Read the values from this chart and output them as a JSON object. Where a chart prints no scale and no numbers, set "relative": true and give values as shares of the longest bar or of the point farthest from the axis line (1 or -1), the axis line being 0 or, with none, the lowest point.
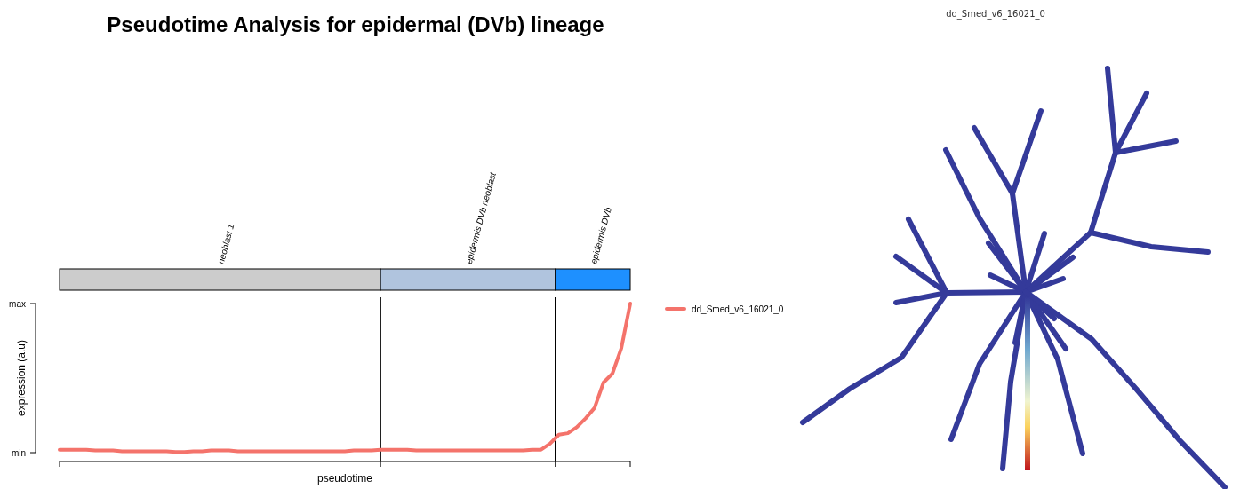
{
  "chart_data": [
    {
      "type": "line",
      "title": "Pseudotime Analysis for epidermal (DVb) lineage",
      "xlabel": "pseudotime",
      "ylabel": "expression (a.u)",
      "categories": [
        null,
        null,
        null,
        null,
        null,
        null,
        null,
        null,
        null,
        null,
        null,
        null,
        null,
        null,
        null,
        null,
        null,
        null,
        null,
        null,
        null,
        null,
        null,
        null,
        null,
        null,
        null,
        null,
        null,
        null,
        null,
        null,
        null,
        null,
        null,
        null,
        null,
        null,
        null,
        null,
        null,
        null,
        null,
        null,
        null,
        null,
        null,
        null,
        null,
        null,
        null,
        null,
        null,
        null,
        null,
        null,
        null,
        null,
        null,
        null,
        null,
        null,
        null,
        null,
        null
      ],
      "series": [
        {
          "name": "dd_Smed_v6_16021_0",
          "color": "#f4736b",
          "values": [
            0.075,
            0.075,
            0.075,
            0.075,
            0.07,
            0.07,
            0.07,
            0.065,
            0.065,
            0.065,
            0.065,
            0.065,
            0.065,
            0.061,
            0.061,
            0.065,
            0.065,
            0.07,
            0.07,
            0.07,
            0.065,
            0.065,
            0.065,
            0.065,
            0.065,
            0.065,
            0.065,
            0.065,
            0.065,
            0.065,
            0.065,
            0.065,
            0.065,
            0.07,
            0.07,
            0.07,
            0.075,
            0.075,
            0.075,
            0.075,
            0.07,
            0.07,
            0.07,
            0.07,
            0.07,
            0.07,
            0.07,
            0.07,
            0.07,
            0.07,
            0.07,
            0.07,
            0.07,
            0.075,
            0.075,
            0.113,
            0.17,
            0.179,
            0.217,
            0.273,
            0.339,
            0.5,
            0.556,
            0.717,
            1.0
          ]
        }
      ],
      "relative": true,
      "annotations": [
        "min",
        "max",
        "neoblast 1",
        "epidermis DVb neoblast",
        "epidermis DVb"
      ],
      "legend": "right",
      "grid": false
    },
    {
      "type": "other",
      "title": "dd_Smed_v6_16021_0"
    }
  ]
}
